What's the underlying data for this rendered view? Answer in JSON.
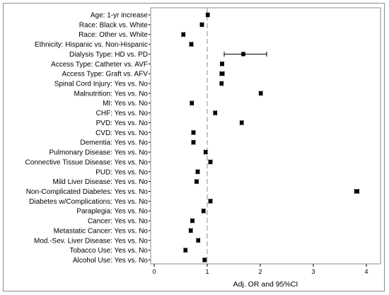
{
  "chart_data": {
    "type": "scatter",
    "subtype": "forest-plot",
    "title": "",
    "xlabel": "Adj. OR and 95%CI",
    "ylabel": "",
    "xlim": [
      0,
      4
    ],
    "xticks": [
      0,
      1,
      2,
      3,
      4
    ],
    "reference_line": 1,
    "grid": false,
    "categories": [
      "Age: 1-yr increase",
      "Race: Black vs. White",
      "Race: Other vs. White",
      "Ethnicity: Hispanic vs. Non-Hispanic",
      "Dialysis Type: HD vs. PD",
      "Access Type: Catheter vs. AVF",
      "Access Type: Graft vs. AFV",
      "Spinal Cord Injury: Yes vs. No",
      "Malnutrition: Yes vs. No",
      "MI: Yes vs. No",
      "CHF: Yes vs. No",
      "PVD: Yes vs. No",
      "CVD: Yes vs. No",
      "Dementia: Yes vs. No",
      "Pulmonary Disease: Yes vs. No",
      "Connective Tissue Disease: Yes vs. No",
      "PUD: Yes vs. No",
      "Mild Liver Disease: Yes vs. No",
      "Non-Complicated Diabetes: Yes vs. No",
      "Diabetes w/Complications: Yes vs. No",
      "Paraplegia: Yes vs. No",
      "Cancer: Yes vs. No",
      "Metastatic Cancer: Yes vs. No",
      "Mod.-Sev. Liver Disease: Yes vs. No",
      "Tobacco Use: Yes vs. No",
      "Alcohol Use: Yes vs. No"
    ],
    "series": [
      {
        "or": [
          1.01,
          0.9,
          0.55,
          0.7,
          1.68,
          1.28,
          1.28,
          1.27,
          2.01,
          0.71,
          1.15,
          1.65,
          0.74,
          0.74,
          0.97,
          1.06,
          0.82,
          0.8,
          3.82,
          1.06,
          0.93,
          0.72,
          0.69,
          0.83,
          0.59,
          0.95
        ],
        "lower": [
          0.99,
          0.87,
          0.52,
          0.67,
          1.32,
          1.25,
          1.24,
          1.24,
          1.98,
          0.68,
          1.12,
          1.62,
          0.71,
          0.71,
          0.94,
          1.03,
          0.79,
          0.77,
          3.78,
          1.03,
          0.9,
          0.69,
          0.66,
          0.8,
          0.56,
          0.92
        ],
        "upper": [
          1.03,
          0.93,
          0.58,
          0.73,
          2.12,
          1.31,
          1.32,
          1.3,
          2.04,
          0.74,
          1.18,
          1.68,
          0.77,
          0.77,
          1.0,
          1.09,
          0.85,
          0.83,
          3.86,
          1.09,
          0.96,
          0.75,
          0.72,
          0.86,
          0.62,
          0.98
        ]
      }
    ]
  }
}
